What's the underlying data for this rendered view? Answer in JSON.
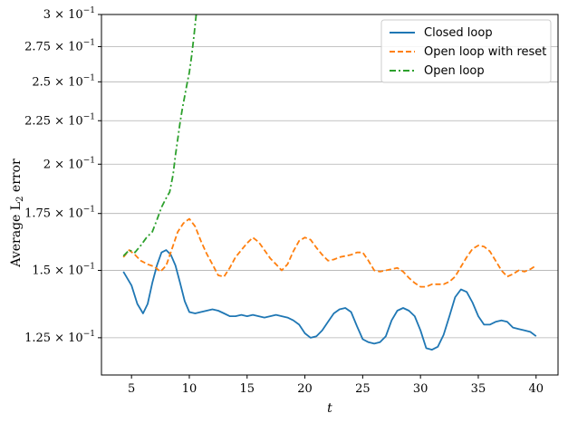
{
  "chart_data": {
    "type": "line",
    "xlabel": "t",
    "ylabel": "Average L",
    "ylabel_sub": "2",
    "ylabel_suffix": " error",
    "xlim": [
      2.4,
      41.9
    ],
    "ylim": [
      0.113,
      0.3
    ],
    "yscale": "log",
    "grid": "y-major",
    "legend_position": "top-right",
    "x_ticks": [
      5,
      10,
      15,
      20,
      25,
      30,
      35,
      40
    ],
    "x_tick_labels": [
      "5",
      "10",
      "15",
      "20",
      "25",
      "30",
      "35",
      "40"
    ],
    "y_ticks": [
      0.125,
      0.15,
      0.175,
      0.2,
      0.225,
      0.25,
      0.275,
      0.3
    ],
    "y_tick_labels": [
      {
        "mantissa": "1.25",
        "base": "10",
        "exp": "−1"
      },
      {
        "mantissa": "1.5",
        "base": "10",
        "exp": "−1"
      },
      {
        "mantissa": "1.75",
        "base": "10",
        "exp": "−1"
      },
      {
        "mantissa": "2",
        "base": "10",
        "exp": "−1"
      },
      {
        "mantissa": "2.25",
        "base": "10",
        "exp": "−1"
      },
      {
        "mantissa": "2.5",
        "base": "10",
        "exp": "−1"
      },
      {
        "mantissa": "2.75",
        "base": "10",
        "exp": "−1"
      },
      {
        "mantissa": "3",
        "base": "10",
        "exp": "−1"
      }
    ],
    "series": [
      {
        "name": "Closed loop",
        "color": "#1f77b4",
        "dash": "solid",
        "x": [
          4.3,
          5.0,
          5.5,
          6.0,
          6.4,
          6.8,
          7.2,
          7.6,
          8.0,
          8.4,
          8.8,
          9.2,
          9.6,
          10.0,
          10.5,
          11.0,
          11.5,
          12.0,
          12.5,
          13.0,
          13.5,
          14.0,
          14.5,
          15.0,
          15.5,
          16.0,
          16.5,
          17.0,
          17.5,
          18.0,
          18.5,
          19.0,
          19.5,
          20.0,
          20.5,
          21.0,
          21.5,
          22.0,
          22.5,
          23.0,
          23.5,
          24.0,
          24.5,
          25.0,
          25.5,
          26.0,
          26.5,
          27.0,
          27.5,
          28.0,
          28.5,
          29.0,
          29.5,
          30.0,
          30.5,
          31.0,
          31.5,
          32.0,
          32.5,
          33.0,
          33.5,
          34.0,
          34.5,
          35.0,
          35.5,
          36.0,
          36.5,
          37.0,
          37.5,
          38.0,
          38.5,
          39.0,
          39.5,
          40.0
        ],
        "y": [
          0.1495,
          0.144,
          0.137,
          0.1335,
          0.137,
          0.145,
          0.152,
          0.1575,
          0.1585,
          0.1565,
          0.152,
          0.145,
          0.138,
          0.134,
          0.1335,
          0.134,
          0.1345,
          0.135,
          0.1345,
          0.1335,
          0.1325,
          0.1325,
          0.133,
          0.1325,
          0.133,
          0.1325,
          0.132,
          0.1325,
          0.133,
          0.1325,
          0.132,
          0.131,
          0.1295,
          0.1265,
          0.125,
          0.1255,
          0.1275,
          0.1305,
          0.1335,
          0.135,
          0.1355,
          0.134,
          0.129,
          0.1245,
          0.1235,
          0.123,
          0.1235,
          0.1255,
          0.131,
          0.1345,
          0.1355,
          0.1345,
          0.1325,
          0.1275,
          0.1215,
          0.121,
          0.122,
          0.126,
          0.1325,
          0.1395,
          0.1425,
          0.1415,
          0.1375,
          0.1325,
          0.1295,
          0.1295,
          0.1305,
          0.131,
          0.1305,
          0.1285,
          0.128,
          0.1275,
          0.127,
          0.1255
        ]
      },
      {
        "name": "Open loop with reset",
        "color": "#ff7f0e",
        "dash": "dashed",
        "x": [
          4.3,
          4.8,
          5.3,
          5.8,
          6.4,
          7.0,
          7.5,
          8.0,
          8.5,
          9.0,
          9.5,
          10.0,
          10.5,
          11.0,
          11.5,
          12.0,
          12.5,
          13.0,
          13.5,
          14.0,
          14.5,
          15.0,
          15.5,
          16.0,
          16.5,
          17.0,
          17.5,
          18.0,
          18.5,
          19.0,
          19.5,
          20.0,
          20.5,
          21.0,
          21.5,
          22.0,
          22.5,
          23.0,
          23.5,
          24.0,
          24.5,
          25.0,
          25.5,
          26.0,
          26.5,
          27.0,
          27.5,
          28.0,
          28.5,
          29.0,
          29.5,
          30.0,
          30.5,
          31.0,
          31.5,
          32.0,
          32.5,
          33.0,
          33.5,
          34.0,
          34.5,
          35.0,
          35.5,
          36.0,
          36.5,
          37.0,
          37.5,
          38.0,
          38.5,
          39.0,
          39.5,
          40.0
        ],
        "y": [
          0.1555,
          0.1585,
          0.1565,
          0.154,
          0.1525,
          0.1515,
          0.1495,
          0.152,
          0.159,
          0.1665,
          0.1705,
          0.1725,
          0.169,
          0.1625,
          0.157,
          0.1525,
          0.148,
          0.1475,
          0.151,
          0.1555,
          0.1585,
          0.1615,
          0.164,
          0.162,
          0.1585,
          0.155,
          0.1525,
          0.15,
          0.1525,
          0.158,
          0.1625,
          0.164,
          0.163,
          0.1595,
          0.1565,
          0.154,
          0.1545,
          0.1555,
          0.156,
          0.1565,
          0.1575,
          0.1575,
          0.154,
          0.15,
          0.1495,
          0.15,
          0.1505,
          0.151,
          0.1495,
          0.147,
          0.145,
          0.1435,
          0.1435,
          0.1445,
          0.1445,
          0.1445,
          0.1455,
          0.1475,
          0.1515,
          0.1555,
          0.159,
          0.1605,
          0.16,
          0.158,
          0.154,
          0.15,
          0.1475,
          0.1485,
          0.15,
          0.1495,
          0.1505,
          0.152
        ]
      },
      {
        "name": "Open loop",
        "color": "#2ca02c",
        "dash": "dashdot",
        "x": [
          4.3,
          4.8,
          5.3,
          5.8,
          6.3,
          6.8,
          7.2,
          7.6,
          8.0,
          8.3,
          8.6,
          8.8,
          9.0,
          9.2,
          9.4,
          9.6,
          9.8,
          10.0,
          10.2,
          10.4,
          10.6
        ],
        "y": [
          0.156,
          0.1585,
          0.1575,
          0.1605,
          0.164,
          0.1665,
          0.172,
          0.178,
          0.1825,
          0.1855,
          0.1945,
          0.205,
          0.214,
          0.224,
          0.2325,
          0.2405,
          0.2485,
          0.2565,
          0.268,
          0.283,
          0.3
        ]
      }
    ]
  }
}
